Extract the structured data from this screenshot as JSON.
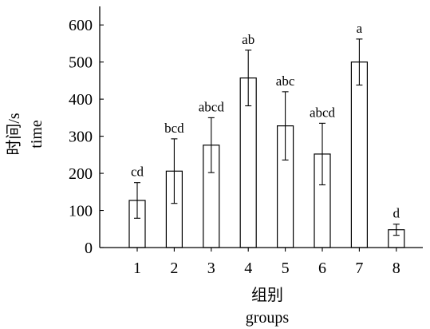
{
  "chart_data": {
    "type": "bar",
    "categories": [
      "1",
      "2",
      "3",
      "4",
      "5",
      "6",
      "7",
      "8"
    ],
    "values": [
      127,
      206,
      276,
      457,
      328,
      252,
      500,
      48
    ],
    "errors": [
      48,
      87,
      74,
      75,
      92,
      83,
      62,
      15
    ],
    "significance_labels": [
      "cd",
      "bcd",
      "abcd",
      "ab",
      "abc",
      "abcd",
      "a",
      "d"
    ],
    "xlabel_line1": "组别",
    "xlabel_line2": "groups",
    "ylabel_line1": "时间/s",
    "ylabel_line2": "time",
    "ylim": [
      0,
      650
    ],
    "yticks": [
      0,
      100,
      200,
      300,
      400,
      500,
      600
    ],
    "grid": false,
    "bar_fill": "#ffffff",
    "bar_stroke": "#000000"
  }
}
